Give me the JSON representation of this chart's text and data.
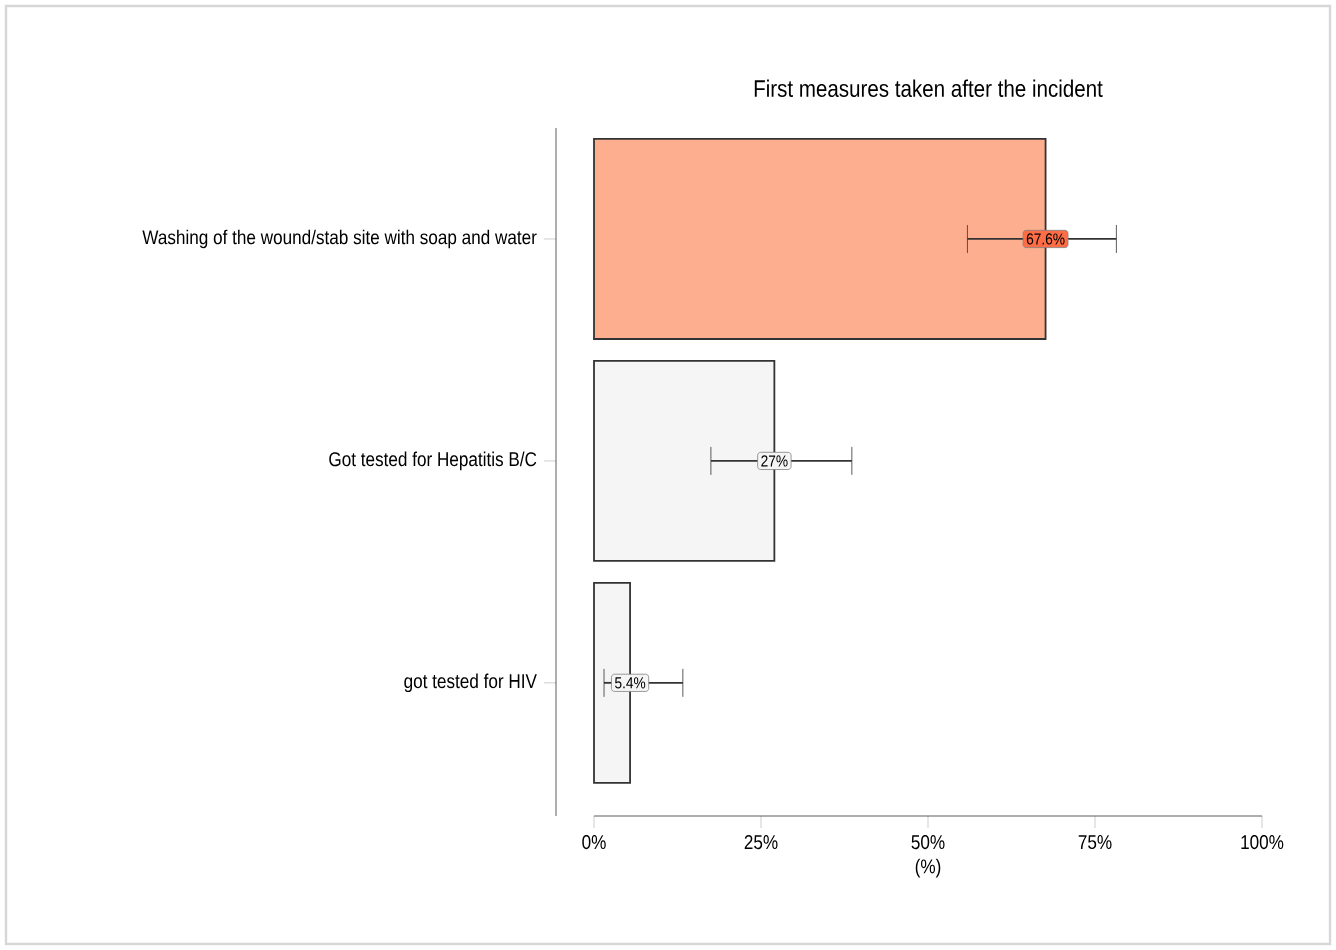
{
  "chart_data": {
    "type": "bar",
    "orientation": "horizontal",
    "title": "First measures taken after the incident",
    "xlabel": "(%)",
    "categories": [
      "Washing of the wound/stab site with soap and water",
      "Got tested for Hepatitis B/C",
      "got tested for HIV"
    ],
    "values": [
      67.6,
      27,
      5.4
    ],
    "value_labels": [
      "67.6%",
      "27%",
      "5.4%"
    ],
    "colors": [
      "#fdae8f",
      "#f5f5f5",
      "#f5f5f5"
    ],
    "errors": [
      [
        55.9,
        78.2
      ],
      [
        17.5,
        38.6
      ],
      [
        1.5,
        13.3
      ]
    ],
    "xlim": [
      0,
      100
    ],
    "xticks": [
      {
        "value": 0,
        "label": "0%"
      },
      {
        "value": 25,
        "label": "25%"
      },
      {
        "value": 50,
        "label": "50%"
      },
      {
        "value": 75,
        "label": "75%"
      },
      {
        "value": 100,
        "label": "100%"
      }
    ],
    "grid": false
  }
}
